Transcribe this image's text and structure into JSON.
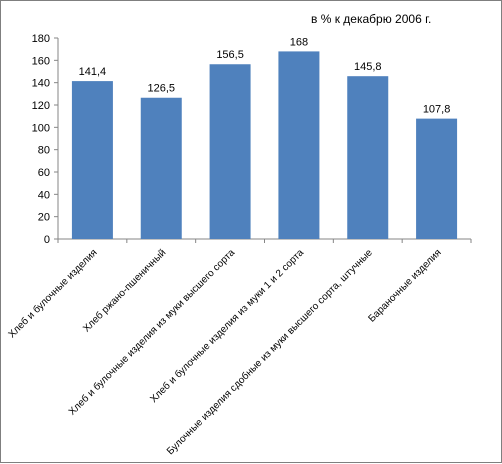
{
  "chart_data": {
    "type": "bar",
    "subtitle": "в % к декабрю 2006 г.",
    "categories": [
      "Хлеб и булочные изделия",
      "Хлеб ржано-пшеничный",
      "Хлеб и булочные изделия из муки высшего сорта",
      "Хлеб и булочные изделия из муки 1 и 2  сорта",
      "Булочные изделия сдобные из муки высшего сорта, штучные",
      "Бараночные изделия"
    ],
    "values": [
      141.4,
      126.5,
      156.5,
      168,
      145.8,
      107.8
    ],
    "data_labels": [
      "141,4",
      "126,5",
      "156,5",
      "168",
      "145,8",
      "107,8"
    ],
    "ylim": [
      0,
      180
    ],
    "yticks": [
      0,
      20,
      40,
      60,
      80,
      100,
      120,
      140,
      160,
      180
    ],
    "bar_color": "#4f81bd",
    "grid": false,
    "legend": "none"
  }
}
